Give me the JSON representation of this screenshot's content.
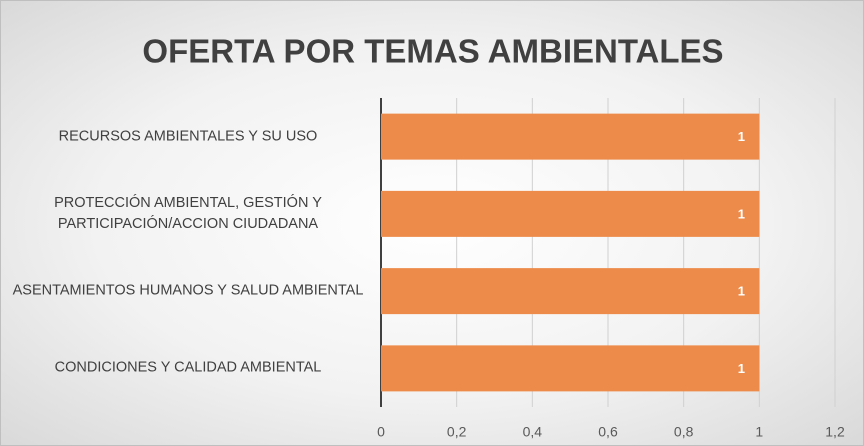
{
  "chart_data": {
    "type": "bar",
    "orientation": "horizontal",
    "title": "OFERTA POR TEMAS AMBIENTALES",
    "categories": [
      "RECURSOS AMBIENTALES Y SU USO",
      "PROTECCIÓN AMBIENTAL, GESTIÓN Y PARTICIPACIÓN/ACCION CIUDADANA",
      "ASENTAMIENTOS HUMANOS Y SALUD AMBIENTAL",
      "CONDICIONES Y CALIDAD AMBIENTAL"
    ],
    "values": [
      1,
      1,
      1,
      1
    ],
    "color": "#ed8b4a",
    "xlim": [
      0,
      1.2
    ],
    "xticks": [
      0,
      {
        "value": 0.2,
        "label": "0,2"
      },
      {
        "value": 0.4,
        "label": "0,4"
      },
      {
        "value": 0.6,
        "label": "0,6"
      },
      {
        "value": 0.8,
        "label": "0,8"
      },
      1,
      {
        "value": 1.2,
        "label": "1,2"
      }
    ],
    "grid": true
  }
}
